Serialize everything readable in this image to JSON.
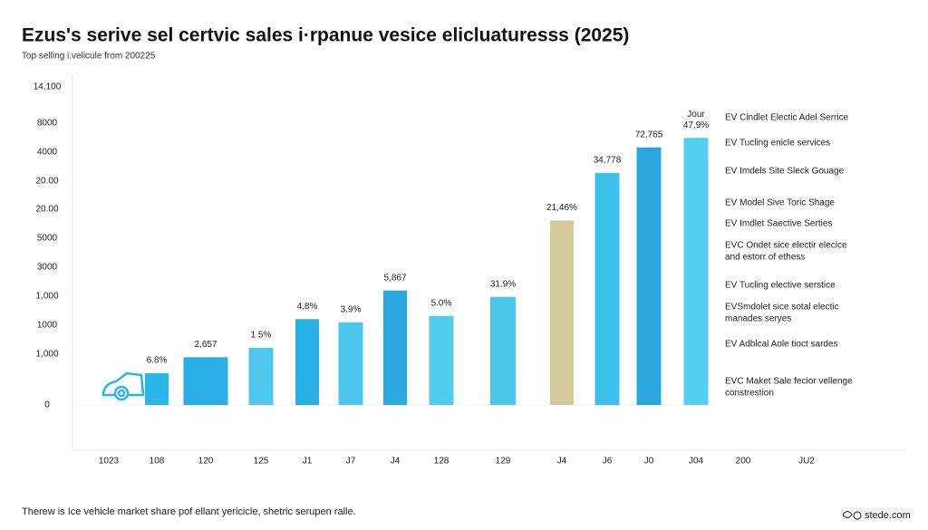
{
  "chart_data": {
    "type": "bar",
    "title": "Ezus's serive sel certvic sales i·rpanue vesice elicluaturesss (2025)",
    "subtitle": "Top selling i.velicule from 200225",
    "footnote": "Therew is Ice vehicle market share pof ellant yericicle, shetric serupen ralle.",
    "source": "stede.com",
    "y_axis_labels": [
      "14,100",
      "8000",
      "4000",
      "20.00",
      "20.00",
      "5000",
      "3000",
      "1,000",
      "1000",
      "1,000",
      "0"
    ],
    "categories": [
      "1023",
      "108",
      "120",
      "125",
      "J1",
      "J7",
      "J4",
      "128",
      "129",
      "J4",
      "J6",
      "J0",
      "J04",
      "200",
      "JU2"
    ],
    "values": [
      null,
      10,
      15,
      18,
      27,
      26,
      36,
      28,
      34,
      58,
      73,
      81,
      84,
      null,
      null
    ],
    "value_labels": [
      null,
      "6.8%",
      "2,657",
      "1 5%",
      "4,8%",
      "3.9%",
      "5,867",
      "5.0%",
      "31.9%",
      "21,46%",
      "34,778",
      "72,765",
      "47,9%",
      null,
      null
    ],
    "top_annotation": "Jour",
    "colors": [
      null,
      "#29b6e8",
      "#2aaee6",
      "#4fc8ec",
      "#27b1e5",
      "#4cc6ec",
      "#2aa8e0",
      "#52ccee",
      "#4bc7ec",
      "#d4c99b",
      "#3cc0ec",
      "#2aa6df",
      "#55cff0",
      null,
      null
    ],
    "ylim": [
      0,
      100
    ],
    "legend_entries": [
      [
        "EV Cindlet Electic Adel Serrice"
      ],
      [
        "EV Tucling enicle services"
      ],
      [
        "EV Imdels Site Sleck Gouage"
      ],
      [
        "EV Model Sive Toric Shage"
      ],
      [
        "EV Imdlet Saective Serties"
      ],
      [
        "EVC Ondet sice electir elecice",
        "and estorr of ethess"
      ],
      [
        "EV Tucling elective serstice"
      ],
      [
        "EVSmdolet sice sotal electic",
        "manades seryes"
      ],
      [
        "EV Adblcal Aole tioct sardes"
      ],
      [
        "EVC Maket Sale fecior vellenge",
        "constrestion"
      ]
    ]
  }
}
